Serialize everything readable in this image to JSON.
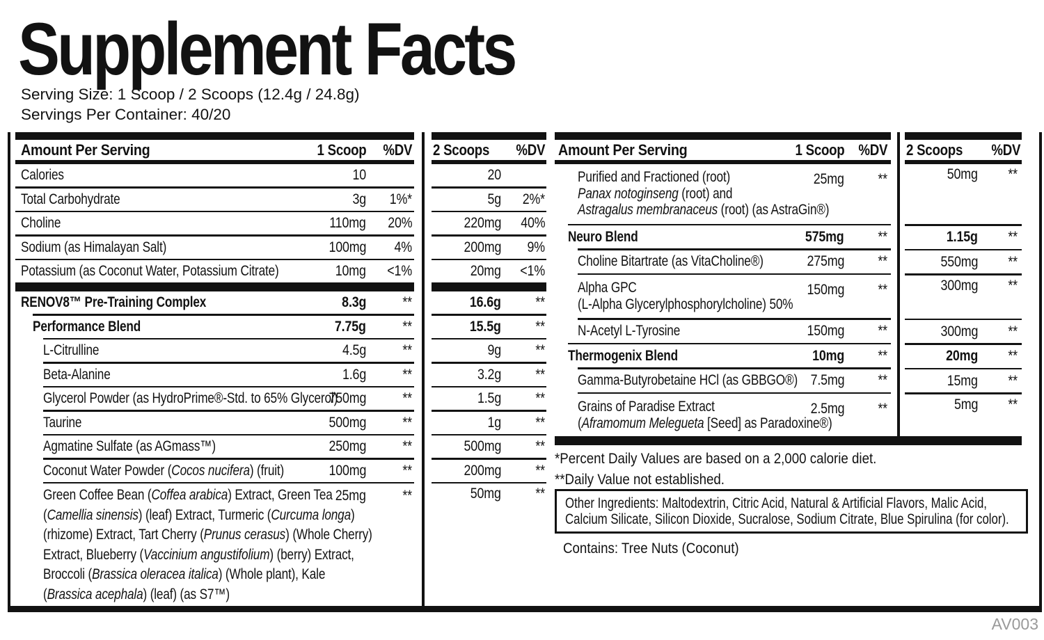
{
  "title": "Supplement Facts",
  "serving_info": {
    "serving_size": "Serving Size: 1 Scoop / 2 Scoops (12.4g / 24.8g)",
    "servings_per_container": "Servings Per Container: 40/20"
  },
  "left_table": {
    "header": {
      "amount_per_serving": "Amount Per Serving",
      "scoop1": "1 Scoop",
      "dv": "%DV"
    },
    "scoop2_header": {
      "scoop2": "2 Scoops",
      "dv": "%DV"
    },
    "rows": [
      {
        "name": "Calories",
        "indent": 0,
        "scoop1": "10",
        "dv1": "",
        "scoop2": "20",
        "dv2": ""
      },
      {
        "name": "Total Carbohydrate",
        "indent": 0,
        "scoop1": "3g",
        "dv1": "1%*",
        "scoop2": "5g",
        "dv2": "2%*"
      },
      {
        "name": "Choline",
        "indent": 0,
        "scoop1": "110mg",
        "dv1": "20%",
        "scoop2": "220mg",
        "dv2": "40%"
      },
      {
        "name": "Sodium (as Himalayan Salt)",
        "indent": 0,
        "scoop1": "100mg",
        "dv1": "4%",
        "scoop2": "200mg",
        "dv2": "9%"
      },
      {
        "name": "Potassium (as Coconut Water, Potassium Citrate)",
        "indent": 0,
        "scoop1": "10mg",
        "dv1": "<1%",
        "scoop2": "20mg",
        "dv2": "<1%"
      },
      {
        "type": "section_bar"
      },
      {
        "name": "RENOV8™ Pre-Training Complex",
        "indent": 0,
        "bold": true,
        "scoop1": "8.3g",
        "dv1": "**",
        "scoop2": "16.6g",
        "dv2": "**"
      },
      {
        "name": "Performance Blend",
        "indent": 1,
        "bold": true,
        "scoop1": "7.75g",
        "dv1": "**",
        "scoop2": "15.5g",
        "dv2": "**"
      },
      {
        "name": "L-Citrulline",
        "indent": 2,
        "scoop1": "4.5g",
        "dv1": "**",
        "scoop2": "9g",
        "dv2": "**"
      },
      {
        "name": "Beta-Alanine",
        "indent": 2,
        "scoop1": "1.6g",
        "dv1": "**",
        "scoop2": "3.2g",
        "dv2": "**"
      },
      {
        "name": "Glycerol Powder (as HydroPrime®-Std. to 65% Glycerol)",
        "indent": 2,
        "scoop1": "750mg",
        "dv1": "**",
        "scoop2": "1.5g",
        "dv2": "**"
      },
      {
        "name": "Taurine",
        "indent": 2,
        "scoop1": "500mg",
        "dv1": "**",
        "scoop2": "1g",
        "dv2": "**"
      },
      {
        "name": "Agmatine Sulfate (as AGmass™)",
        "indent": 2,
        "scoop1": "250mg",
        "dv1": "**",
        "scoop2": "500mg",
        "dv2": "**"
      },
      {
        "parts": [
          {
            "t": "Coconut Water Powder ("
          },
          {
            "t": "Cocos nucifera",
            "i": true
          },
          {
            "t": ") (fruit)"
          }
        ],
        "indent": 2,
        "scoop1": "100mg",
        "dv1": "**",
        "scoop2": "200mg",
        "dv2": "**"
      },
      {
        "parts": [
          {
            "t": "Green Coffee Bean ("
          },
          {
            "t": "Coffea arabica",
            "i": true
          },
          {
            "t": ") Extract, Green Tea"
          },
          {
            "br": true
          },
          {
            "t": "("
          },
          {
            "t": "Camellia sinensis",
            "i": true
          },
          {
            "t": ") (leaf) Extract, Turmeric ("
          },
          {
            "t": "Curcuma longa",
            "i": true
          },
          {
            "t": ")"
          },
          {
            "br": true
          },
          {
            "t": "(rhizome) Extract, Tart Cherry ("
          },
          {
            "t": "Prunus cerasus",
            "i": true
          },
          {
            "t": ") (Whole Cherry)"
          },
          {
            "br": true
          },
          {
            "t": "Extract, Blueberry ("
          },
          {
            "t": "Vaccinium angustifolium",
            "i": true
          },
          {
            "t": ") (berry) Extract,"
          },
          {
            "br": true
          },
          {
            "t": "Broccoli ("
          },
          {
            "t": "Brassica oleracea italica",
            "i": true
          },
          {
            "t": ") (Whole plant), Kale"
          },
          {
            "br": true
          },
          {
            "t": "("
          },
          {
            "t": "Brassica acephala",
            "i": true
          },
          {
            "t": ") (leaf) (as S7™)"
          }
        ],
        "indent": 2,
        "top": true,
        "scoop1": "25mg",
        "dv1": "**",
        "scoop2": "50mg",
        "dv2": "**"
      }
    ]
  },
  "right_table": {
    "header": {
      "amount_per_serving": "Amount Per Serving",
      "scoop1": "1 Scoop",
      "dv": "%DV"
    },
    "scoop2_header": {
      "scoop2": "2 Scoops",
      "dv": "%DV"
    },
    "rows": [
      {
        "parts": [
          {
            "t": "Purified and Fractioned (root)"
          },
          {
            "br": true
          },
          {
            "t": "Panax notoginseng",
            "i": true
          },
          {
            "t": " (root) and"
          },
          {
            "br": true
          },
          {
            "t": "Astragalus membranaceus",
            "i": true
          },
          {
            "t": " (root) (as AstraGin®)"
          }
        ],
        "indent": 2,
        "top": true,
        "scoop1": "25mg",
        "dv1": "**",
        "scoop2": "50mg",
        "dv2": "**"
      },
      {
        "name": "Neuro Blend",
        "indent": 1,
        "bold": true,
        "scoop1": "575mg",
        "dv1": "**",
        "scoop2": "1.15g",
        "dv2": "**"
      },
      {
        "name": "Choline Bitartrate (as VitaCholine®)",
        "indent": 2,
        "scoop1": "275mg",
        "dv1": "**",
        "scoop2": "550mg",
        "dv2": "**"
      },
      {
        "parts": [
          {
            "t": "Alpha GPC"
          },
          {
            "br": true
          },
          {
            "t": "(L-Alpha Glycerylphosphorylcholine) 50%"
          }
        ],
        "indent": 2,
        "top": true,
        "scoop1": "150mg",
        "dv1": "**",
        "scoop2": "300mg",
        "dv2": "**"
      },
      {
        "name": "N-Acetyl L-Tyrosine",
        "indent": 2,
        "scoop1": "150mg",
        "dv1": "**",
        "scoop2": "300mg",
        "dv2": "**"
      },
      {
        "name": "Thermogenix Blend",
        "indent": 1,
        "bold": true,
        "scoop1": "10mg",
        "dv1": "**",
        "scoop2": "20mg",
        "dv2": "**"
      },
      {
        "name": "Gamma-Butyrobetaine HCl (as GBBGO®)",
        "indent": 2,
        "scoop1": "7.5mg",
        "dv1": "**",
        "scoop2": "15mg",
        "dv2": "**"
      },
      {
        "parts": [
          {
            "t": "Grains of Paradise Extract"
          },
          {
            "br": true
          },
          {
            "t": "("
          },
          {
            "t": "Aframomum Melegueta",
            "i": true
          },
          {
            "t": " [Seed] as Paradoxine®)"
          }
        ],
        "indent": 2,
        "top": true,
        "scoop1": "2.5mg",
        "dv1": "**",
        "scoop2": "5mg",
        "dv2": "**"
      }
    ]
  },
  "footnotes": {
    "percent_dv": "*Percent Daily Values are based on a 2,000 calorie diet.",
    "not_established": "**Daily Value not established."
  },
  "other_ingredients": {
    "line1": "Other Ingredients: Maltodextrin, Citric Acid, Natural & Artificial Flavors, Malic Acid,",
    "line2": "Calcium Silicate, Silicon Dioxide, Sucralose, Sodium Citrate, Blue Spirulina (for color)."
  },
  "contains": "Contains: Tree Nuts (Coconut)",
  "artwork_code": "AV003",
  "colors": {
    "ink": "#121212",
    "code_gray": "#9a9a9a"
  }
}
